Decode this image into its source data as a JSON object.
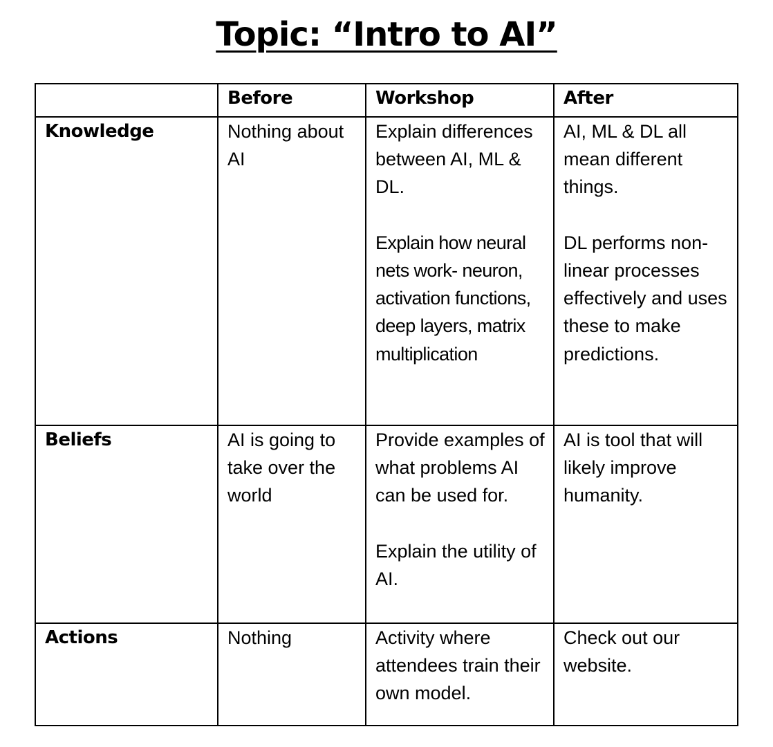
{
  "title": "Topic: “Intro to AI”",
  "table": {
    "headers": [
      "",
      "Before",
      "Workshop",
      "After"
    ],
    "rows": [
      {
        "label": "Knowledge",
        "before": "Nothing about AI",
        "workshop": [
          "Explain differences between AI, ML & DL.",
          "Explain how neural nets work- neuron, activation functions, deep layers, matrix multiplication"
        ],
        "after": [
          "AI, ML & DL all mean different things.",
          "DL performs non-linear processes effectively and uses these to make predictions."
        ]
      },
      {
        "label": "Beliefs",
        "before": "AI is going to take over the world",
        "workshop": [
          "Provide examples of what problems AI can be used for.",
          "Explain the utility of AI."
        ],
        "after": [
          "AI is tool that will likely improve humanity."
        ]
      },
      {
        "label": "Actions",
        "before": "Nothing",
        "workshop": [
          "Activity where attendees train their own model."
        ],
        "after": [
          "Check out our website."
        ]
      }
    ]
  }
}
